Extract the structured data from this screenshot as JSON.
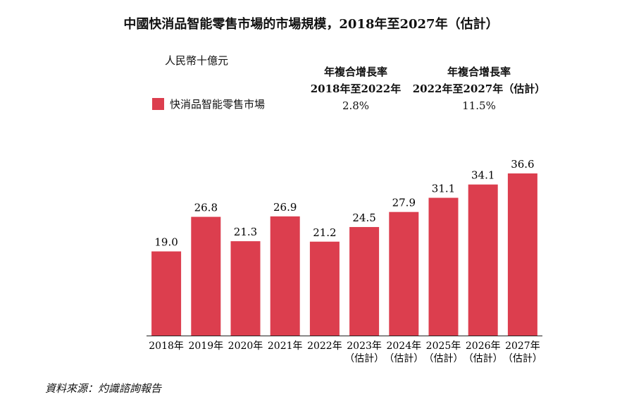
{
  "chart_data": {
    "type": "bar",
    "title": "中國快消品智能零售市場的市場規模，2018年至2027年（估計）",
    "ylabel": "人民幣十億元",
    "legend": [
      "快消品智能零售市場"
    ],
    "categories": [
      [
        "2018年"
      ],
      [
        "2019年"
      ],
      [
        "2020年"
      ],
      [
        "2021年"
      ],
      [
        "2022年"
      ],
      [
        "2023年",
        "（估計）"
      ],
      [
        "2024年",
        "（估計）"
      ],
      [
        "2025年",
        "（估計）"
      ],
      [
        "2026年",
        "（估計）"
      ],
      [
        "2027年",
        "（估計）"
      ]
    ],
    "values": [
      19.0,
      26.8,
      21.3,
      26.9,
      21.2,
      24.5,
      27.9,
      31.1,
      34.1,
      36.6
    ],
    "value_labels": [
      "19.0",
      "26.8",
      "21.3",
      "26.9",
      "21.2",
      "24.5",
      "27.9",
      "31.1",
      "34.1",
      "36.6"
    ],
    "ylim": [
      0,
      36.6
    ],
    "color": "#DC3E4E",
    "cagr": [
      {
        "header": "年複合增長率",
        "period": "2018年至2022年",
        "value": "2.8%"
      },
      {
        "header": "年複合增長率",
        "period": "2022年至2027年（估計）",
        "value": "11.5%"
      }
    ]
  },
  "source": "資料來源：灼識諮詢報告"
}
